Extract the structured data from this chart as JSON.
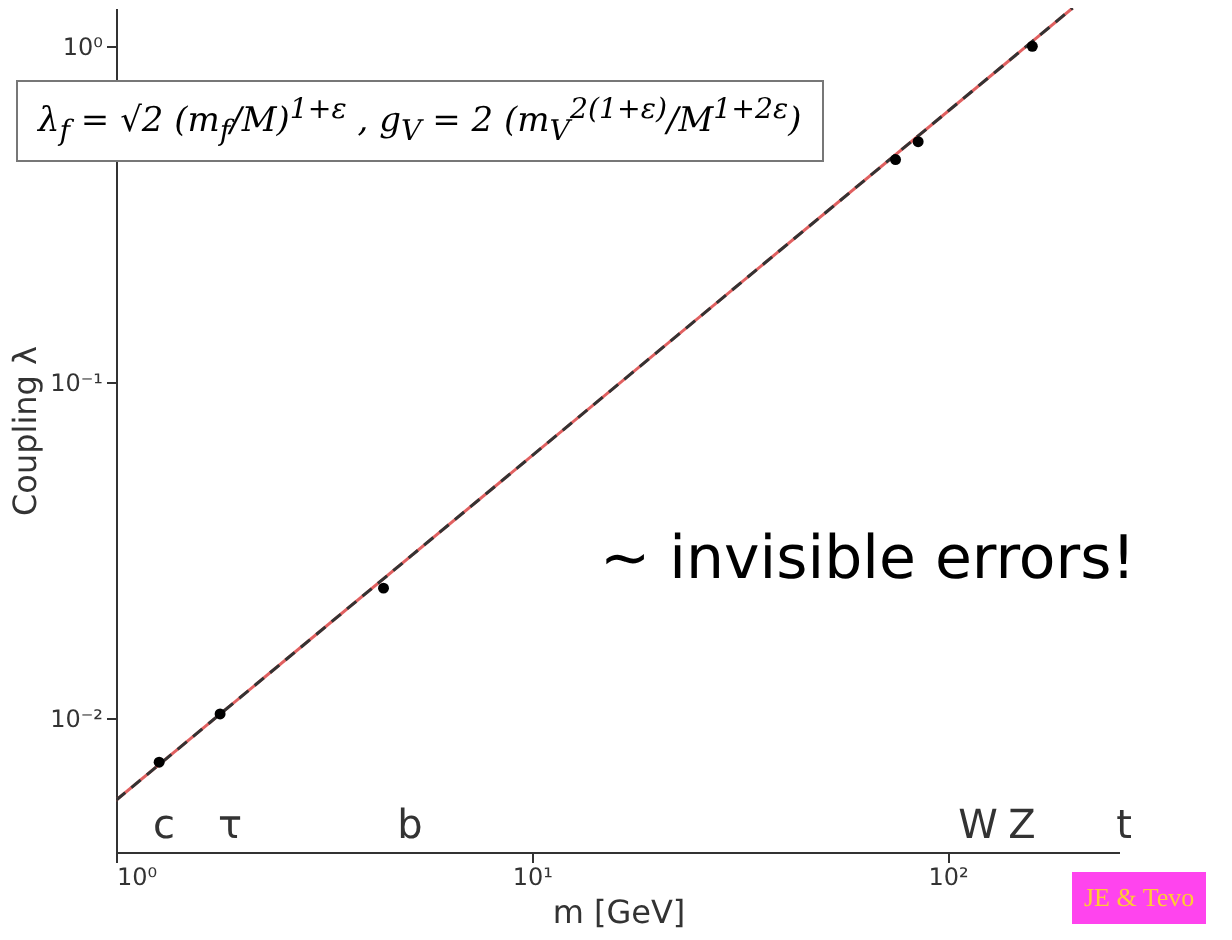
{
  "chart_data": {
    "type": "scatter",
    "xlabel": "m [GeV]",
    "ylabel": "Coupling λ",
    "log": "xy",
    "grid": false,
    "xlim": [
      1,
      260
    ],
    "ylim": [
      0.004,
      1.3
    ],
    "xticks": [
      {
        "value": 1,
        "label": "10⁰"
      },
      {
        "value": 10,
        "label": "10¹"
      },
      {
        "value": 100,
        "label": "10²"
      }
    ],
    "yticks": [
      {
        "value": 0.01,
        "label": "10⁻²"
      },
      {
        "value": 0.1,
        "label": "10⁻¹"
      },
      {
        "value": 1,
        "label": "10⁰"
      }
    ],
    "series": [
      {
        "type": "line",
        "color": "#e06060",
        "line_style": "solid",
        "marker": "none",
        "x": [
          1,
          200
        ],
        "values": [
          0.0057,
          1.3
        ]
      },
      {
        "type": "line",
        "color": "#333333",
        "line_style": "dashed",
        "marker": "none",
        "x": [
          1,
          200
        ],
        "values": [
          0.0057,
          1.3
        ]
      },
      {
        "color": "#000000",
        "marker": "circle",
        "x": [
          1.27,
          1.78,
          4.4,
          75,
          85,
          160
        ],
        "values": [
          0.0074,
          0.0103,
          0.0244,
          0.46,
          0.52,
          1.0
        ]
      }
    ],
    "annotations": [
      "λ$_{f}$ = √2 (m$_{f}$/M)$^{1+ε}$ ,  g$_{V}$ = 2 (m$_{V}$$^{2(1+ε)}$/M$^{1+2ε}$)",
      "~ invisible errors!",
      "JE & Tevo",
      "c",
      "τ",
      "b",
      "W",
      "Z",
      "t"
    ]
  }
}
